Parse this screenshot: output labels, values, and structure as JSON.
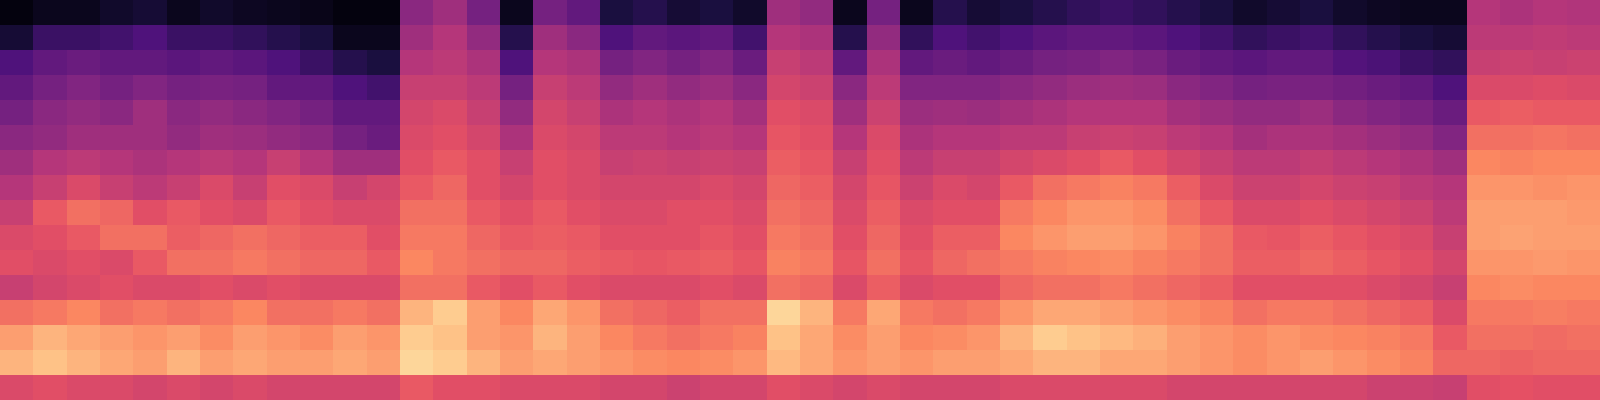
{
  "chart_data": {
    "type": "heatmap",
    "tick_labels": false,
    "zlim": [
      0,
      1
    ],
    "cells": [
      [
        0.02,
        0.1,
        0.25,
        0.3,
        0.35,
        0.4,
        0.45,
        0.5,
        0.55,
        0.6,
        0.62,
        0.55,
        0.7,
        0.8,
        0.85,
        0.6
      ],
      [
        0.05,
        0.2,
        0.3,
        0.35,
        0.4,
        0.42,
        0.5,
        0.55,
        0.65,
        0.62,
        0.6,
        0.58,
        0.72,
        0.85,
        0.88,
        0.62
      ],
      [
        0.05,
        0.2,
        0.32,
        0.38,
        0.42,
        0.45,
        0.52,
        0.6,
        0.7,
        0.65,
        0.62,
        0.6,
        0.75,
        0.82,
        0.85,
        0.6
      ],
      [
        0.08,
        0.22,
        0.3,
        0.35,
        0.4,
        0.45,
        0.5,
        0.55,
        0.68,
        0.7,
        0.6,
        0.62,
        0.7,
        0.8,
        0.82,
        0.6
      ],
      [
        0.1,
        0.25,
        0.3,
        0.38,
        0.45,
        0.45,
        0.48,
        0.52,
        0.62,
        0.7,
        0.65,
        0.6,
        0.72,
        0.78,
        0.8,
        0.58
      ],
      [
        0.05,
        0.2,
        0.28,
        0.35,
        0.4,
        0.42,
        0.5,
        0.55,
        0.65,
        0.66,
        0.7,
        0.6,
        0.7,
        0.8,
        0.85,
        0.6
      ],
      [
        0.08,
        0.2,
        0.3,
        0.36,
        0.42,
        0.45,
        0.52,
        0.6,
        0.62,
        0.68,
        0.7,
        0.62,
        0.72,
        0.76,
        0.8,
        0.58
      ],
      [
        0.06,
        0.18,
        0.28,
        0.35,
        0.4,
        0.44,
        0.5,
        0.55,
        0.6,
        0.7,
        0.72,
        0.6,
        0.75,
        0.8,
        0.82,
        0.6
      ],
      [
        0.05,
        0.15,
        0.25,
        0.3,
        0.38,
        0.42,
        0.55,
        0.62,
        0.65,
        0.68,
        0.7,
        0.62,
        0.7,
        0.78,
        0.8,
        0.58
      ],
      [
        0.04,
        0.12,
        0.2,
        0.3,
        0.35,
        0.4,
        0.5,
        0.6,
        0.62,
        0.66,
        0.68,
        0.6,
        0.7,
        0.76,
        0.8,
        0.58
      ],
      [
        0.02,
        0.05,
        0.15,
        0.25,
        0.3,
        0.35,
        0.45,
        0.55,
        0.6,
        0.66,
        0.68,
        0.6,
        0.72,
        0.8,
        0.82,
        0.58
      ],
      [
        0.02,
        0.05,
        0.12,
        0.22,
        0.3,
        0.32,
        0.45,
        0.58,
        0.6,
        0.62,
        0.65,
        0.6,
        0.7,
        0.78,
        0.8,
        0.58
      ],
      [
        0.4,
        0.45,
        0.5,
        0.55,
        0.58,
        0.6,
        0.62,
        0.65,
        0.7,
        0.72,
        0.75,
        0.7,
        0.85,
        0.9,
        0.92,
        0.65
      ],
      [
        0.45,
        0.5,
        0.52,
        0.55,
        0.6,
        0.62,
        0.65,
        0.68,
        0.7,
        0.72,
        0.72,
        0.7,
        0.9,
        0.88,
        0.9,
        0.62
      ],
      [
        0.35,
        0.42,
        0.48,
        0.52,
        0.55,
        0.58,
        0.62,
        0.62,
        0.65,
        0.68,
        0.7,
        0.65,
        0.8,
        0.8,
        0.85,
        0.62
      ],
      [
        0.05,
        0.15,
        0.25,
        0.35,
        0.42,
        0.48,
        0.55,
        0.58,
        0.62,
        0.65,
        0.68,
        0.62,
        0.75,
        0.78,
        0.8,
        0.6
      ],
      [
        0.35,
        0.45,
        0.5,
        0.55,
        0.58,
        0.6,
        0.62,
        0.62,
        0.65,
        0.66,
        0.68,
        0.65,
        0.82,
        0.85,
        0.82,
        0.6
      ],
      [
        0.3,
        0.4,
        0.48,
        0.52,
        0.55,
        0.58,
        0.6,
        0.6,
        0.62,
        0.65,
        0.66,
        0.62,
        0.78,
        0.8,
        0.8,
        0.6
      ],
      [
        0.12,
        0.25,
        0.35,
        0.42,
        0.48,
        0.52,
        0.55,
        0.58,
        0.6,
        0.62,
        0.65,
        0.6,
        0.7,
        0.75,
        0.78,
        0.58
      ],
      [
        0.15,
        0.3,
        0.38,
        0.45,
        0.5,
        0.52,
        0.56,
        0.58,
        0.6,
        0.62,
        0.64,
        0.6,
        0.68,
        0.72,
        0.76,
        0.58
      ],
      [
        0.1,
        0.28,
        0.35,
        0.42,
        0.48,
        0.5,
        0.55,
        0.58,
        0.62,
        0.62,
        0.65,
        0.6,
        0.66,
        0.7,
        0.75,
        0.56
      ],
      [
        0.12,
        0.3,
        0.38,
        0.44,
        0.5,
        0.52,
        0.56,
        0.6,
        0.62,
        0.64,
        0.66,
        0.62,
        0.7,
        0.72,
        0.76,
        0.58
      ],
      [
        0.08,
        0.22,
        0.32,
        0.4,
        0.46,
        0.5,
        0.55,
        0.58,
        0.6,
        0.62,
        0.64,
        0.6,
        0.7,
        0.74,
        0.78,
        0.58
      ],
      [
        0.45,
        0.5,
        0.55,
        0.58,
        0.62,
        0.64,
        0.66,
        0.68,
        0.7,
        0.72,
        0.74,
        0.7,
        0.92,
        0.88,
        0.86,
        0.62
      ],
      [
        0.42,
        0.48,
        0.52,
        0.56,
        0.6,
        0.62,
        0.64,
        0.66,
        0.68,
        0.7,
        0.72,
        0.68,
        0.85,
        0.82,
        0.82,
        0.6
      ],
      [
        0.05,
        0.15,
        0.3,
        0.4,
        0.45,
        0.5,
        0.55,
        0.58,
        0.6,
        0.62,
        0.64,
        0.6,
        0.72,
        0.76,
        0.78,
        0.58
      ],
      [
        0.35,
        0.42,
        0.48,
        0.52,
        0.56,
        0.6,
        0.62,
        0.64,
        0.66,
        0.68,
        0.7,
        0.66,
        0.82,
        0.8,
        0.8,
        0.6
      ],
      [
        0.05,
        0.18,
        0.3,
        0.38,
        0.44,
        0.48,
        0.52,
        0.56,
        0.6,
        0.62,
        0.64,
        0.6,
        0.72,
        0.75,
        0.78,
        0.58
      ],
      [
        0.15,
        0.25,
        0.32,
        0.38,
        0.45,
        0.5,
        0.55,
        0.6,
        0.62,
        0.66,
        0.68,
        0.62,
        0.7,
        0.76,
        0.8,
        0.58
      ],
      [
        0.1,
        0.22,
        0.3,
        0.38,
        0.44,
        0.5,
        0.55,
        0.58,
        0.62,
        0.66,
        0.7,
        0.62,
        0.72,
        0.78,
        0.8,
        0.58
      ],
      [
        0.12,
        0.25,
        0.32,
        0.4,
        0.46,
        0.52,
        0.58,
        0.65,
        0.72,
        0.75,
        0.72,
        0.68,
        0.78,
        0.85,
        0.82,
        0.6
      ],
      [
        0.15,
        0.28,
        0.35,
        0.42,
        0.48,
        0.52,
        0.6,
        0.7,
        0.75,
        0.78,
        0.74,
        0.7,
        0.82,
        0.9,
        0.85,
        0.6
      ],
      [
        0.18,
        0.3,
        0.36,
        0.44,
        0.5,
        0.55,
        0.62,
        0.72,
        0.78,
        0.8,
        0.75,
        0.7,
        0.82,
        0.88,
        0.85,
        0.6
      ],
      [
        0.2,
        0.3,
        0.38,
        0.45,
        0.5,
        0.56,
        0.65,
        0.74,
        0.78,
        0.8,
        0.76,
        0.72,
        0.8,
        0.86,
        0.82,
        0.6
      ],
      [
        0.18,
        0.28,
        0.36,
        0.44,
        0.5,
        0.55,
        0.62,
        0.72,
        0.76,
        0.78,
        0.74,
        0.7,
        0.78,
        0.84,
        0.82,
        0.6
      ],
      [
        0.15,
        0.25,
        0.32,
        0.4,
        0.46,
        0.52,
        0.58,
        0.66,
        0.7,
        0.74,
        0.72,
        0.68,
        0.76,
        0.8,
        0.8,
        0.58
      ],
      [
        0.12,
        0.22,
        0.3,
        0.38,
        0.44,
        0.5,
        0.55,
        0.6,
        0.65,
        0.7,
        0.7,
        0.66,
        0.74,
        0.78,
        0.78,
        0.58
      ],
      [
        0.08,
        0.18,
        0.28,
        0.35,
        0.42,
        0.46,
        0.52,
        0.56,
        0.6,
        0.65,
        0.66,
        0.62,
        0.7,
        0.76,
        0.76,
        0.58
      ],
      [
        0.1,
        0.2,
        0.3,
        0.36,
        0.42,
        0.48,
        0.52,
        0.56,
        0.6,
        0.64,
        0.66,
        0.62,
        0.72,
        0.78,
        0.78,
        0.58
      ],
      [
        0.12,
        0.22,
        0.3,
        0.36,
        0.44,
        0.48,
        0.54,
        0.58,
        0.62,
        0.66,
        0.68,
        0.62,
        0.72,
        0.76,
        0.8,
        0.58
      ],
      [
        0.08,
        0.18,
        0.26,
        0.34,
        0.4,
        0.46,
        0.52,
        0.56,
        0.6,
        0.64,
        0.66,
        0.62,
        0.7,
        0.75,
        0.78,
        0.58
      ],
      [
        0.06,
        0.15,
        0.24,
        0.32,
        0.38,
        0.44,
        0.5,
        0.55,
        0.58,
        0.62,
        0.64,
        0.6,
        0.68,
        0.74,
        0.76,
        0.56
      ],
      [
        0.05,
        0.12,
        0.2,
        0.3,
        0.36,
        0.42,
        0.48,
        0.52,
        0.56,
        0.6,
        0.62,
        0.58,
        0.66,
        0.72,
        0.74,
        0.56
      ],
      [
        0.05,
        0.1,
        0.18,
        0.25,
        0.32,
        0.38,
        0.45,
        0.5,
        0.52,
        0.55,
        0.58,
        0.55,
        0.6,
        0.65,
        0.68,
        0.55
      ],
      [
        0.5,
        0.52,
        0.55,
        0.6,
        0.65,
        0.7,
        0.75,
        0.78,
        0.8,
        0.8,
        0.78,
        0.75,
        0.72,
        0.7,
        0.68,
        0.62
      ],
      [
        0.48,
        0.52,
        0.56,
        0.6,
        0.66,
        0.7,
        0.74,
        0.78,
        0.8,
        0.81,
        0.78,
        0.76,
        0.72,
        0.7,
        0.67,
        0.63
      ],
      [
        0.5,
        0.53,
        0.55,
        0.61,
        0.65,
        0.71,
        0.75,
        0.77,
        0.8,
        0.8,
        0.79,
        0.75,
        0.73,
        0.69,
        0.68,
        0.62
      ],
      [
        0.49,
        0.52,
        0.56,
        0.6,
        0.65,
        0.7,
        0.75,
        0.78,
        0.79,
        0.8,
        0.78,
        0.75,
        0.72,
        0.7,
        0.68,
        0.62
      ]
    ]
  }
}
